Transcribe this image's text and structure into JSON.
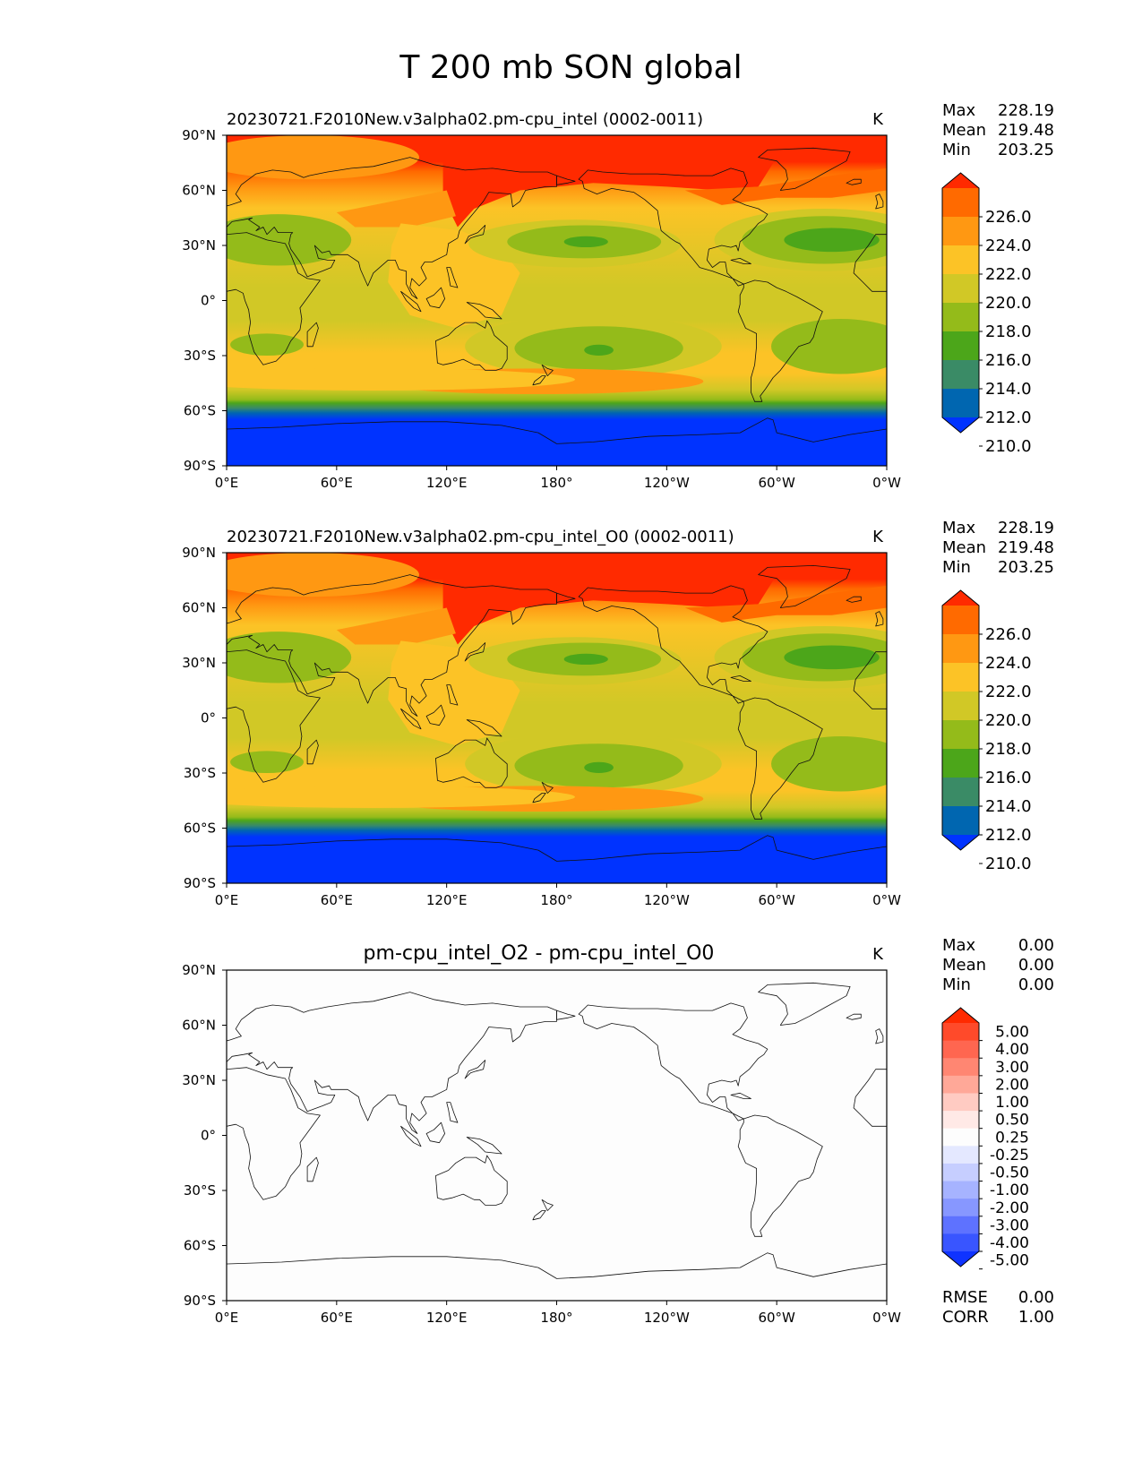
{
  "page": {
    "title": "T 200 mb SON global"
  },
  "chart_data": [
    {
      "type": "heatmap",
      "title": "20230721.F2010New.v3alpha02.pm-cpu_intel (0002-0011)",
      "units": "K",
      "stats": {
        "Max": "228.19",
        "Mean": "219.48",
        "Min": "203.25"
      },
      "x_ticks": [
        "0°E",
        "60°E",
        "120°E",
        "180°",
        "120°W",
        "60°W",
        "0°W"
      ],
      "y_ticks": [
        "90°N",
        "60°N",
        "30°N",
        "0°",
        "30°S",
        "60°S",
        "90°S"
      ],
      "colorbar": {
        "labels": [
          "226.0",
          "224.0",
          "222.0",
          "220.0",
          "218.0",
          "216.0",
          "214.0",
          "212.0",
          "210.0"
        ],
        "colors": [
          "#ff2a00",
          "#ff6a00",
          "#ff9812",
          "#fcc326",
          "#d1c826",
          "#94bb1a",
          "#4ca61a",
          "#3a8b66",
          "#0066b0",
          "#0033ff"
        ]
      },
      "footer": []
    },
    {
      "type": "heatmap",
      "title": "20230721.F2010New.v3alpha02.pm-cpu_intel_O0 (0002-0011)",
      "units": "K",
      "stats": {
        "Max": "228.19",
        "Mean": "219.48",
        "Min": "203.25"
      },
      "x_ticks": [
        "0°E",
        "60°E",
        "120°E",
        "180°",
        "120°W",
        "60°W",
        "0°W"
      ],
      "y_ticks": [
        "90°N",
        "60°N",
        "30°N",
        "0°",
        "30°S",
        "60°S",
        "90°S"
      ],
      "colorbar": {
        "labels": [
          "226.0",
          "224.0",
          "222.0",
          "220.0",
          "218.0",
          "216.0",
          "214.0",
          "212.0",
          "210.0"
        ],
        "colors": [
          "#ff2a00",
          "#ff6a00",
          "#ff9812",
          "#fcc326",
          "#d1c826",
          "#94bb1a",
          "#4ca61a",
          "#3a8b66",
          "#0066b0",
          "#0033ff"
        ]
      },
      "footer": []
    },
    {
      "type": "heatmap",
      "title": "pm-cpu_intel_O2 - pm-cpu_intel_O0",
      "units": "K",
      "stats": {
        "Max": "0.00",
        "Mean": "0.00",
        "Min": "0.00"
      },
      "x_ticks": [
        "0°E",
        "60°E",
        "120°E",
        "180°",
        "120°W",
        "60°W",
        "0°W"
      ],
      "y_ticks": [
        "90°N",
        "60°N",
        "30°N",
        "0°",
        "30°S",
        "60°S",
        "90°S"
      ],
      "colorbar": {
        "labels": [
          "5.00",
          "4.00",
          "3.00",
          "2.00",
          "1.00",
          "0.50",
          "0.25",
          "-0.25",
          "-0.50",
          "-1.00",
          "-2.00",
          "-3.00",
          "-4.00",
          "-5.00"
        ],
        "colors": [
          "#ff2a00",
          "#ff4a2a",
          "#ff6650",
          "#ff8672",
          "#ffa898",
          "#ffcbc2",
          "#ffe9e6",
          "#fdfdfd",
          "#e4e8ff",
          "#c6ceff",
          "#a6b3ff",
          "#8797ff",
          "#5e72ff",
          "#3955ff",
          "#0f33ff"
        ]
      },
      "footer": [
        {
          "label": "RMSE",
          "value": "0.00"
        },
        {
          "label": "CORR",
          "value": "1.00"
        }
      ]
    }
  ]
}
